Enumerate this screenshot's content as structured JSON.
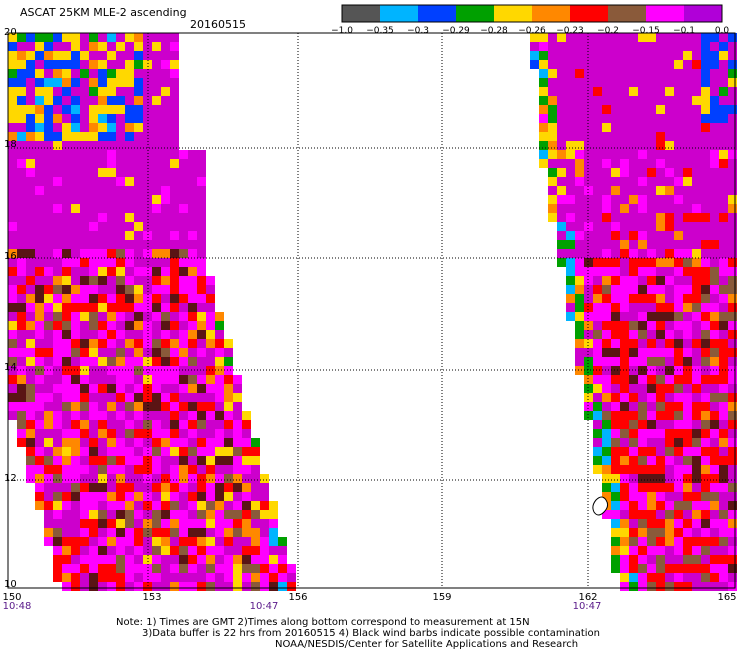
{
  "header": {
    "title": "ASCAT 25KM MLE-2 ascending",
    "date": "20160515"
  },
  "colorbar": {
    "labels": [
      "−1.0",
      "−0.35",
      "−0.3",
      "−0.29",
      "−0.28",
      "−0.26",
      "−0.23",
      "−0.2",
      "−0.15",
      "−0.1",
      "0.0"
    ],
    "colors": [
      "#555555",
      "#00b4ff",
      "#0040ff",
      "#00a000",
      "#ffd800",
      "#ff8800",
      "#ff0000",
      "#8a5a3a",
      "#ff00ff",
      "#b000d8"
    ]
  },
  "axes": {
    "lat_labels": [
      "20",
      "18",
      "16",
      "14",
      "12",
      "10"
    ],
    "lon_labels": [
      "150",
      "153",
      "156",
      "159",
      "162",
      "165"
    ],
    "time_labels": [
      {
        "text": "10:48",
        "lon": 150
      },
      {
        "text": "10:47",
        "lon": 154.7
      },
      {
        "text": "10:47",
        "lon": 162
      }
    ]
  },
  "notes": [
    "Note: 1) Times are GMT 2)Times along bottom correspond to measurement at 15N",
    "3)Data buffer is 22 hrs from 20160515 4) Black wind barbs indicate possible contamination",
    "NOAA/NESDIS/Center for Satellite Applications and Research"
  ],
  "map": {
    "background": "#ffffff",
    "swath_fill": "#cc00cc",
    "grid_color": "#000000"
  }
}
